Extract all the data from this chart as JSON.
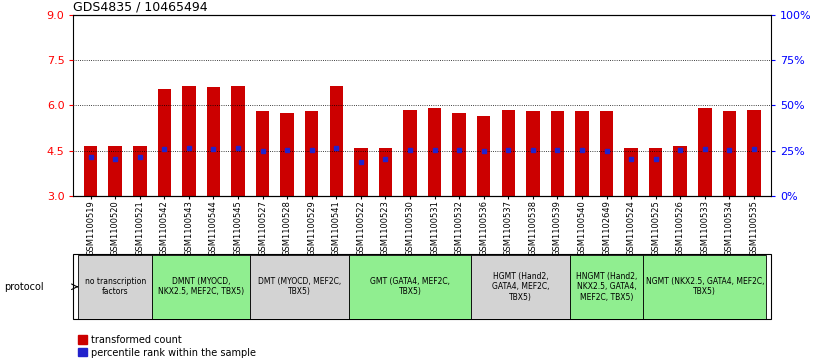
{
  "title": "GDS4835 / 10465494",
  "samples": [
    "GSM1100519",
    "GSM1100520",
    "GSM1100521",
    "GSM1100542",
    "GSM1100543",
    "GSM1100544",
    "GSM1100545",
    "GSM1100527",
    "GSM1100528",
    "GSM1100529",
    "GSM1100541",
    "GSM1100522",
    "GSM1100523",
    "GSM1100530",
    "GSM1100531",
    "GSM1100532",
    "GSM1100536",
    "GSM1100537",
    "GSM1100538",
    "GSM1100539",
    "GSM1100540",
    "GSM1102649",
    "GSM1100524",
    "GSM1100525",
    "GSM1100526",
    "GSM1100533",
    "GSM1100534",
    "GSM1100535"
  ],
  "transformed_count": [
    4.65,
    4.65,
    4.65,
    6.55,
    6.65,
    6.6,
    6.65,
    5.8,
    5.75,
    5.8,
    6.65,
    4.6,
    4.6,
    5.85,
    5.9,
    5.75,
    5.65,
    5.85,
    5.8,
    5.8,
    5.8,
    5.8,
    4.6,
    4.6,
    4.65,
    5.9,
    5.8,
    5.85
  ],
  "percentile_rank_y": [
    4.28,
    4.22,
    4.28,
    4.55,
    4.58,
    4.55,
    4.58,
    4.48,
    4.52,
    4.52,
    4.58,
    4.12,
    4.22,
    4.52,
    4.52,
    4.52,
    4.48,
    4.52,
    4.52,
    4.52,
    4.52,
    4.48,
    4.22,
    4.22,
    4.52,
    4.55,
    4.52,
    4.55
  ],
  "ymin": 3,
  "ymax": 9,
  "yticks_left": [
    3,
    4.5,
    6,
    7.5,
    9
  ],
  "yticks_right": [
    0,
    25,
    50,
    75,
    100
  ],
  "bar_color": "#cc0000",
  "dot_color": "#2222cc",
  "bar_width": 0.55,
  "protocols": [
    {
      "label": "no transcription\nfactors",
      "start": 0,
      "end": 3,
      "color": "#d3d3d3"
    },
    {
      "label": "DMNT (MYOCD,\nNKX2.5, MEF2C, TBX5)",
      "start": 3,
      "end": 7,
      "color": "#90EE90"
    },
    {
      "label": "DMT (MYOCD, MEF2C,\nTBX5)",
      "start": 7,
      "end": 11,
      "color": "#d3d3d3"
    },
    {
      "label": "GMT (GATA4, MEF2C,\nTBX5)",
      "start": 11,
      "end": 16,
      "color": "#90EE90"
    },
    {
      "label": "HGMT (Hand2,\nGATA4, MEF2C,\nTBX5)",
      "start": 16,
      "end": 20,
      "color": "#d3d3d3"
    },
    {
      "label": "HNGMT (Hand2,\nNKX2.5, GATA4,\nMEF2C, TBX5)",
      "start": 20,
      "end": 23,
      "color": "#90EE90"
    },
    {
      "label": "NGMT (NKX2.5, GATA4, MEF2C,\nTBX5)",
      "start": 23,
      "end": 28,
      "color": "#90EE90"
    }
  ]
}
